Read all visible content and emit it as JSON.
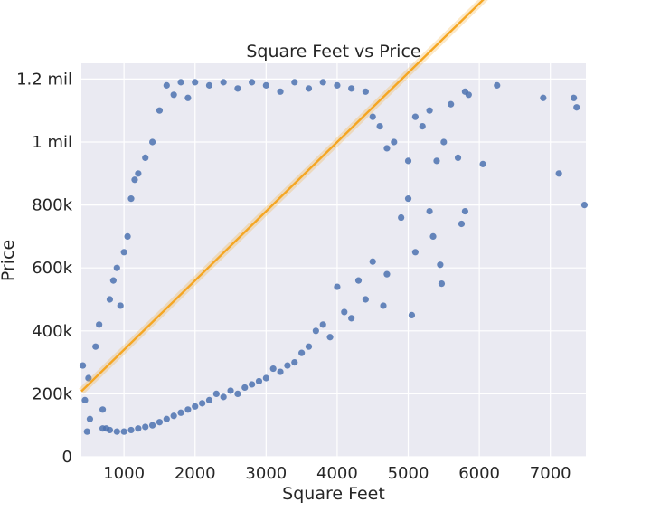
{
  "chart_data": {
    "type": "scatter",
    "title": "Square Feet vs Price",
    "xlabel": "Square Feet",
    "ylabel": "Price",
    "xlim": [
      400,
      7500
    ],
    "ylim": [
      0,
      1250000
    ],
    "x_ticks": [
      1000,
      2000,
      3000,
      4000,
      5000,
      6000,
      7000
    ],
    "x_tick_labels": [
      "1000",
      "2000",
      "3000",
      "4000",
      "5000",
      "6000",
      "7000"
    ],
    "y_ticks": [
      0,
      200000,
      400000,
      600000,
      800000,
      1000000,
      1200000
    ],
    "y_tick_labels": [
      "0",
      "200k",
      "400k",
      "600k",
      "800k",
      "1 mil",
      "1.2 mil"
    ],
    "grid": true,
    "background_color": "#eaeaf2",
    "series": [
      {
        "color": "#4c72b0",
        "points": [
          [
            420,
            290000
          ],
          [
            450,
            180000
          ],
          [
            480,
            80000
          ],
          [
            500,
            250000
          ],
          [
            520,
            120000
          ],
          [
            600,
            350000
          ],
          [
            650,
            420000
          ],
          [
            700,
            150000
          ],
          [
            750,
            90000
          ],
          [
            800,
            500000
          ],
          [
            850,
            560000
          ],
          [
            900,
            600000
          ],
          [
            950,
            480000
          ],
          [
            1000,
            650000
          ],
          [
            1050,
            700000
          ],
          [
            1100,
            820000
          ],
          [
            1150,
            880000
          ],
          [
            1200,
            900000
          ],
          [
            1300,
            950000
          ],
          [
            1400,
            1000000
          ],
          [
            1500,
            1100000
          ],
          [
            1600,
            1180000
          ],
          [
            1700,
            1150000
          ],
          [
            1800,
            1190000
          ],
          [
            1900,
            1140000
          ],
          [
            2000,
            1190000
          ],
          [
            2200,
            1180000
          ],
          [
            2400,
            1190000
          ],
          [
            2600,
            1170000
          ],
          [
            2800,
            1190000
          ],
          [
            3000,
            1180000
          ],
          [
            3200,
            1160000
          ],
          [
            3400,
            1190000
          ],
          [
            3600,
            1170000
          ],
          [
            3800,
            1190000
          ],
          [
            4000,
            1180000
          ],
          [
            4200,
            1170000
          ],
          [
            4400,
            1160000
          ],
          [
            4500,
            1080000
          ],
          [
            4600,
            1050000
          ],
          [
            4700,
            980000
          ],
          [
            4800,
            1000000
          ],
          [
            5000,
            940000
          ],
          [
            5100,
            1080000
          ],
          [
            5200,
            1050000
          ],
          [
            5300,
            1100000
          ],
          [
            5400,
            940000
          ],
          [
            5500,
            1000000
          ],
          [
            5600,
            1120000
          ],
          [
            5700,
            950000
          ],
          [
            5800,
            1160000
          ],
          [
            5850,
            1150000
          ],
          [
            6050,
            930000
          ],
          [
            6250,
            1180000
          ],
          [
            6900,
            1140000
          ],
          [
            7120,
            900000
          ],
          [
            7330,
            1140000
          ],
          [
            7370,
            1110000
          ],
          [
            7480,
            800000
          ],
          [
            5750,
            740000
          ],
          [
            5800,
            780000
          ],
          [
            5450,
            610000
          ],
          [
            5470,
            550000
          ],
          [
            5100,
            650000
          ],
          [
            5050,
            450000
          ],
          [
            5350,
            700000
          ],
          [
            5300,
            780000
          ],
          [
            5000,
            820000
          ],
          [
            4900,
            760000
          ],
          [
            4700,
            580000
          ],
          [
            4650,
            480000
          ],
          [
            4500,
            620000
          ],
          [
            4400,
            500000
          ],
          [
            4300,
            560000
          ],
          [
            4200,
            440000
          ],
          [
            4100,
            460000
          ],
          [
            4000,
            540000
          ],
          [
            3900,
            380000
          ],
          [
            3800,
            420000
          ],
          [
            3700,
            400000
          ],
          [
            3600,
            350000
          ],
          [
            3500,
            330000
          ],
          [
            3400,
            300000
          ],
          [
            3300,
            290000
          ],
          [
            3200,
            270000
          ],
          [
            3100,
            280000
          ],
          [
            3000,
            250000
          ],
          [
            2900,
            240000
          ],
          [
            2800,
            230000
          ],
          [
            2700,
            220000
          ],
          [
            2600,
            200000
          ],
          [
            2500,
            210000
          ],
          [
            2400,
            190000
          ],
          [
            2300,
            200000
          ],
          [
            2200,
            180000
          ],
          [
            2100,
            170000
          ],
          [
            2000,
            160000
          ],
          [
            1900,
            150000
          ],
          [
            1800,
            140000
          ],
          [
            1700,
            130000
          ],
          [
            1600,
            120000
          ],
          [
            1500,
            110000
          ],
          [
            1400,
            100000
          ],
          [
            1300,
            95000
          ],
          [
            1200,
            90000
          ],
          [
            1100,
            85000
          ],
          [
            1000,
            80000
          ],
          [
            900,
            80000
          ],
          [
            800,
            85000
          ],
          [
            700,
            90000
          ]
        ]
      }
    ],
    "regression": {
      "color": "#f5a623",
      "intercept": 120000,
      "slope": 220,
      "x_range": [
        400,
        7500
      ]
    }
  }
}
